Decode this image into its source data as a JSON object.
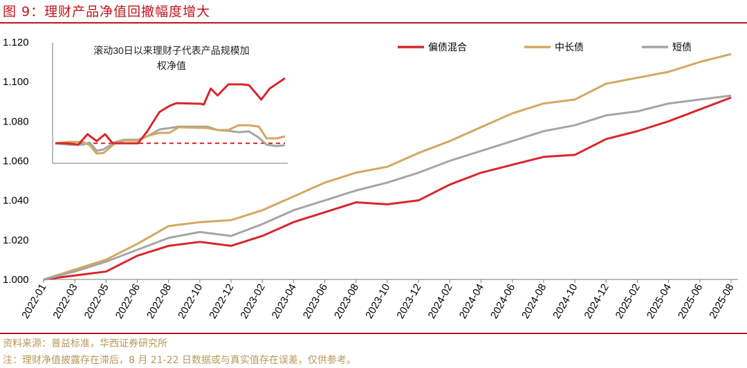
{
  "title": "图 9：理财产品净值回撤幅度增大",
  "source": "资料来源：普益标准，华西证券研究所",
  "note": "注：理财净值披露存在滞后，8 月 21-22 日数据或与真实值存在误差，仅供参考。",
  "chart_data": [
    {
      "type": "line",
      "title": "",
      "ylim": [
        1.0,
        1.12
      ],
      "yticks": [
        "1.000",
        "1.020",
        "1.040",
        "1.060",
        "1.080",
        "1.100",
        "1.120"
      ],
      "categories": [
        "2022-01",
        "2022-03",
        "2022-05",
        "2022-06",
        "2022-08",
        "2022-10",
        "2022-12",
        "2023-02",
        "2023-04",
        "2023-06",
        "2023-08",
        "2023-10",
        "2023-12",
        "2024-02",
        "2024-04",
        "2024-06",
        "2024-08",
        "2024-10",
        "2024-12",
        "2025-02",
        "2025-04",
        "2025-06",
        "2025-08"
      ],
      "legend_position": "top-right",
      "series": [
        {
          "name": "偏债混合",
          "color": "#d7262b",
          "values": [
            1.0,
            1.002,
            1.004,
            1.012,
            1.017,
            1.019,
            1.017,
            1.022,
            1.029,
            1.034,
            1.039,
            1.038,
            1.04,
            1.048,
            1.054,
            1.058,
            1.062,
            1.063,
            1.071,
            1.075,
            1.08,
            1.086,
            1.092
          ]
        },
        {
          "name": "中长债",
          "color": "#d2a860",
          "values": [
            1.0,
            1.005,
            1.01,
            1.018,
            1.027,
            1.029,
            1.03,
            1.035,
            1.042,
            1.049,
            1.054,
            1.057,
            1.064,
            1.07,
            1.077,
            1.084,
            1.089,
            1.091,
            1.099,
            1.102,
            1.105,
            1.11,
            1.114
          ]
        },
        {
          "name": "短债",
          "color": "#a5a5a5",
          "values": [
            1.0,
            1.004,
            1.009,
            1.015,
            1.021,
            1.024,
            1.022,
            1.028,
            1.035,
            1.04,
            1.045,
            1.049,
            1.054,
            1.06,
            1.065,
            1.07,
            1.075,
            1.078,
            1.083,
            1.085,
            1.089,
            1.091,
            1.093
          ]
        }
      ]
    },
    {
      "type": "line",
      "title": "滚动30日以来理财子代表产品规模加权净值",
      "title_line1": "滚动30日以来理财子代表产品规模加",
      "title_line2": "权净值",
      "xlim": [
        0,
        30
      ],
      "ylim": [
        1.0588,
        1.1197
      ],
      "reference_line": {
        "value": 1.0689,
        "color": "#d7262b",
        "style": "dashed"
      },
      "series": [
        {
          "name": "偏债混合",
          "color": "#d7262b",
          "x": [
            0,
            1.4,
            3.0,
            4.2,
            5.4,
            6.5,
            7.5,
            9.9,
            10.8,
            12.0,
            13.6,
            14.9,
            15.8,
            19.0,
            19.4,
            20.3,
            21.2,
            22.6,
            24.4,
            25.3,
            26.6,
            26.9,
            28.0,
            30
          ],
          "values": [
            1.0689,
            1.0689,
            1.0682,
            1.0735,
            1.07,
            1.0735,
            1.0689,
            1.0689,
            1.0689,
            1.0749,
            1.0847,
            1.0878,
            1.0892,
            1.0889,
            1.0885,
            1.0966,
            1.0931,
            1.0987,
            1.0987,
            1.0983,
            1.0924,
            1.091,
            1.0966,
            1.1018
          ]
        },
        {
          "name": "中长债",
          "color": "#d2a860",
          "x": [
            0,
            1.8,
            3.6,
            4.5,
            5.4,
            6.3,
            7.7,
            9.0,
            10.8,
            12.2,
            13.6,
            14.9,
            16.1,
            19.9,
            21.2,
            22.6,
            23.9,
            25.3,
            26.6,
            27.6,
            28.9,
            30
          ],
          "values": [
            1.0689,
            1.0696,
            1.0696,
            1.0679,
            1.0637,
            1.064,
            1.0686,
            1.0703,
            1.0703,
            1.0728,
            1.0742,
            1.0742,
            1.077,
            1.0766,
            1.0756,
            1.0756,
            1.078,
            1.078,
            1.0773,
            1.0714,
            1.0714,
            1.0724
          ]
        },
        {
          "name": "短债",
          "color": "#a5a5a5",
          "x": [
            0,
            1.8,
            3.6,
            4.5,
            5.4,
            6.3,
            7.7,
            9.0,
            10.8,
            12.2,
            13.6,
            14.9,
            16.1,
            19.9,
            21.2,
            22.6,
            23.9,
            25.3,
            26.6,
            27.6,
            28.9,
            30
          ],
          "values": [
            1.0689,
            1.0682,
            1.0682,
            1.0693,
            1.0651,
            1.0658,
            1.0693,
            1.0707,
            1.0707,
            1.0728,
            1.0759,
            1.0766,
            1.0773,
            1.0773,
            1.0756,
            1.0752,
            1.0745,
            1.0749,
            1.0717,
            1.0682,
            1.0675,
            1.0679
          ]
        }
      ]
    }
  ]
}
